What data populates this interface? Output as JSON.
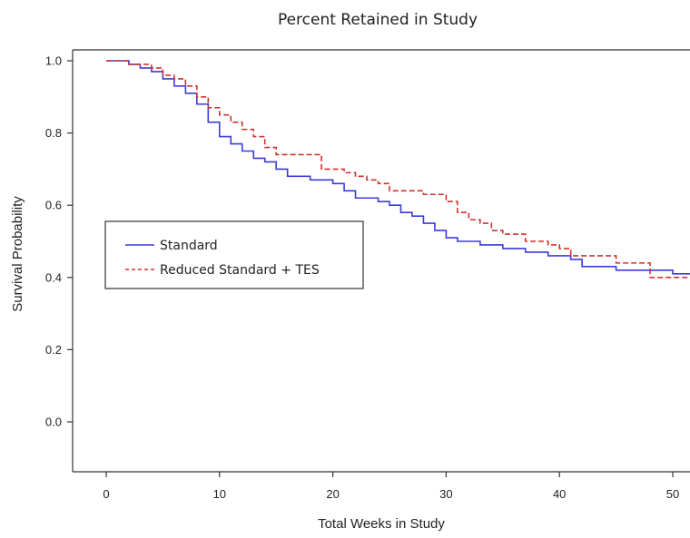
{
  "chart_data": {
    "type": "line",
    "title": "Percent Retained in Study",
    "xlabel": "Total Weeks in Study",
    "ylabel": "Survival Probability",
    "xlim": [
      0,
      52
    ],
    "ylim": [
      -0.14,
      1.03
    ],
    "xticks": [
      0,
      10,
      20,
      30,
      40,
      50
    ],
    "xtick_labels": [
      "0",
      "10",
      "20",
      "30",
      "40",
      "50"
    ],
    "yticks": [
      0.0,
      0.2,
      0.4,
      0.6,
      0.8,
      1.0
    ],
    "ytick_labels": [
      "0.0",
      "0.2",
      "0.4",
      "0.6",
      "0.8",
      "1.0"
    ],
    "grid": false,
    "legend_position": "left-middle",
    "series": [
      {
        "name": "Standard",
        "color": "#3b3bdc",
        "style": "solid",
        "step_x": [
          0,
          2,
          3,
          4,
          5,
          6,
          7,
          8,
          9,
          10,
          11,
          12,
          13,
          14,
          15,
          16,
          18,
          20,
          21,
          22,
          24,
          25,
          26,
          27,
          28,
          29,
          30,
          31,
          33,
          35,
          37,
          39,
          41,
          42,
          45,
          50,
          52
        ],
        "step_y": [
          1.0,
          0.99,
          0.98,
          0.97,
          0.95,
          0.93,
          0.91,
          0.88,
          0.83,
          0.79,
          0.77,
          0.75,
          0.73,
          0.72,
          0.7,
          0.68,
          0.67,
          0.66,
          0.64,
          0.62,
          0.61,
          0.6,
          0.58,
          0.57,
          0.55,
          0.53,
          0.51,
          0.5,
          0.49,
          0.48,
          0.47,
          0.46,
          0.45,
          0.43,
          0.42,
          0.41,
          0.39
        ]
      },
      {
        "name": "Reduced Standard + TES",
        "color": "#d23030",
        "style": "dashed",
        "step_x": [
          0,
          2,
          4,
          5,
          6,
          7,
          8,
          9,
          10,
          11,
          12,
          13,
          14,
          15,
          17,
          19,
          21,
          22,
          23,
          24,
          25,
          26,
          28,
          30,
          31,
          32,
          33,
          34,
          35,
          37,
          39,
          40,
          41,
          45,
          48,
          52
        ],
        "step_y": [
          1.0,
          0.99,
          0.98,
          0.96,
          0.95,
          0.93,
          0.9,
          0.87,
          0.85,
          0.83,
          0.81,
          0.79,
          0.76,
          0.74,
          0.74,
          0.7,
          0.69,
          0.68,
          0.67,
          0.66,
          0.64,
          0.64,
          0.63,
          0.61,
          0.58,
          0.56,
          0.55,
          0.53,
          0.52,
          0.5,
          0.49,
          0.48,
          0.46,
          0.44,
          0.4,
          0.39
        ]
      }
    ]
  }
}
